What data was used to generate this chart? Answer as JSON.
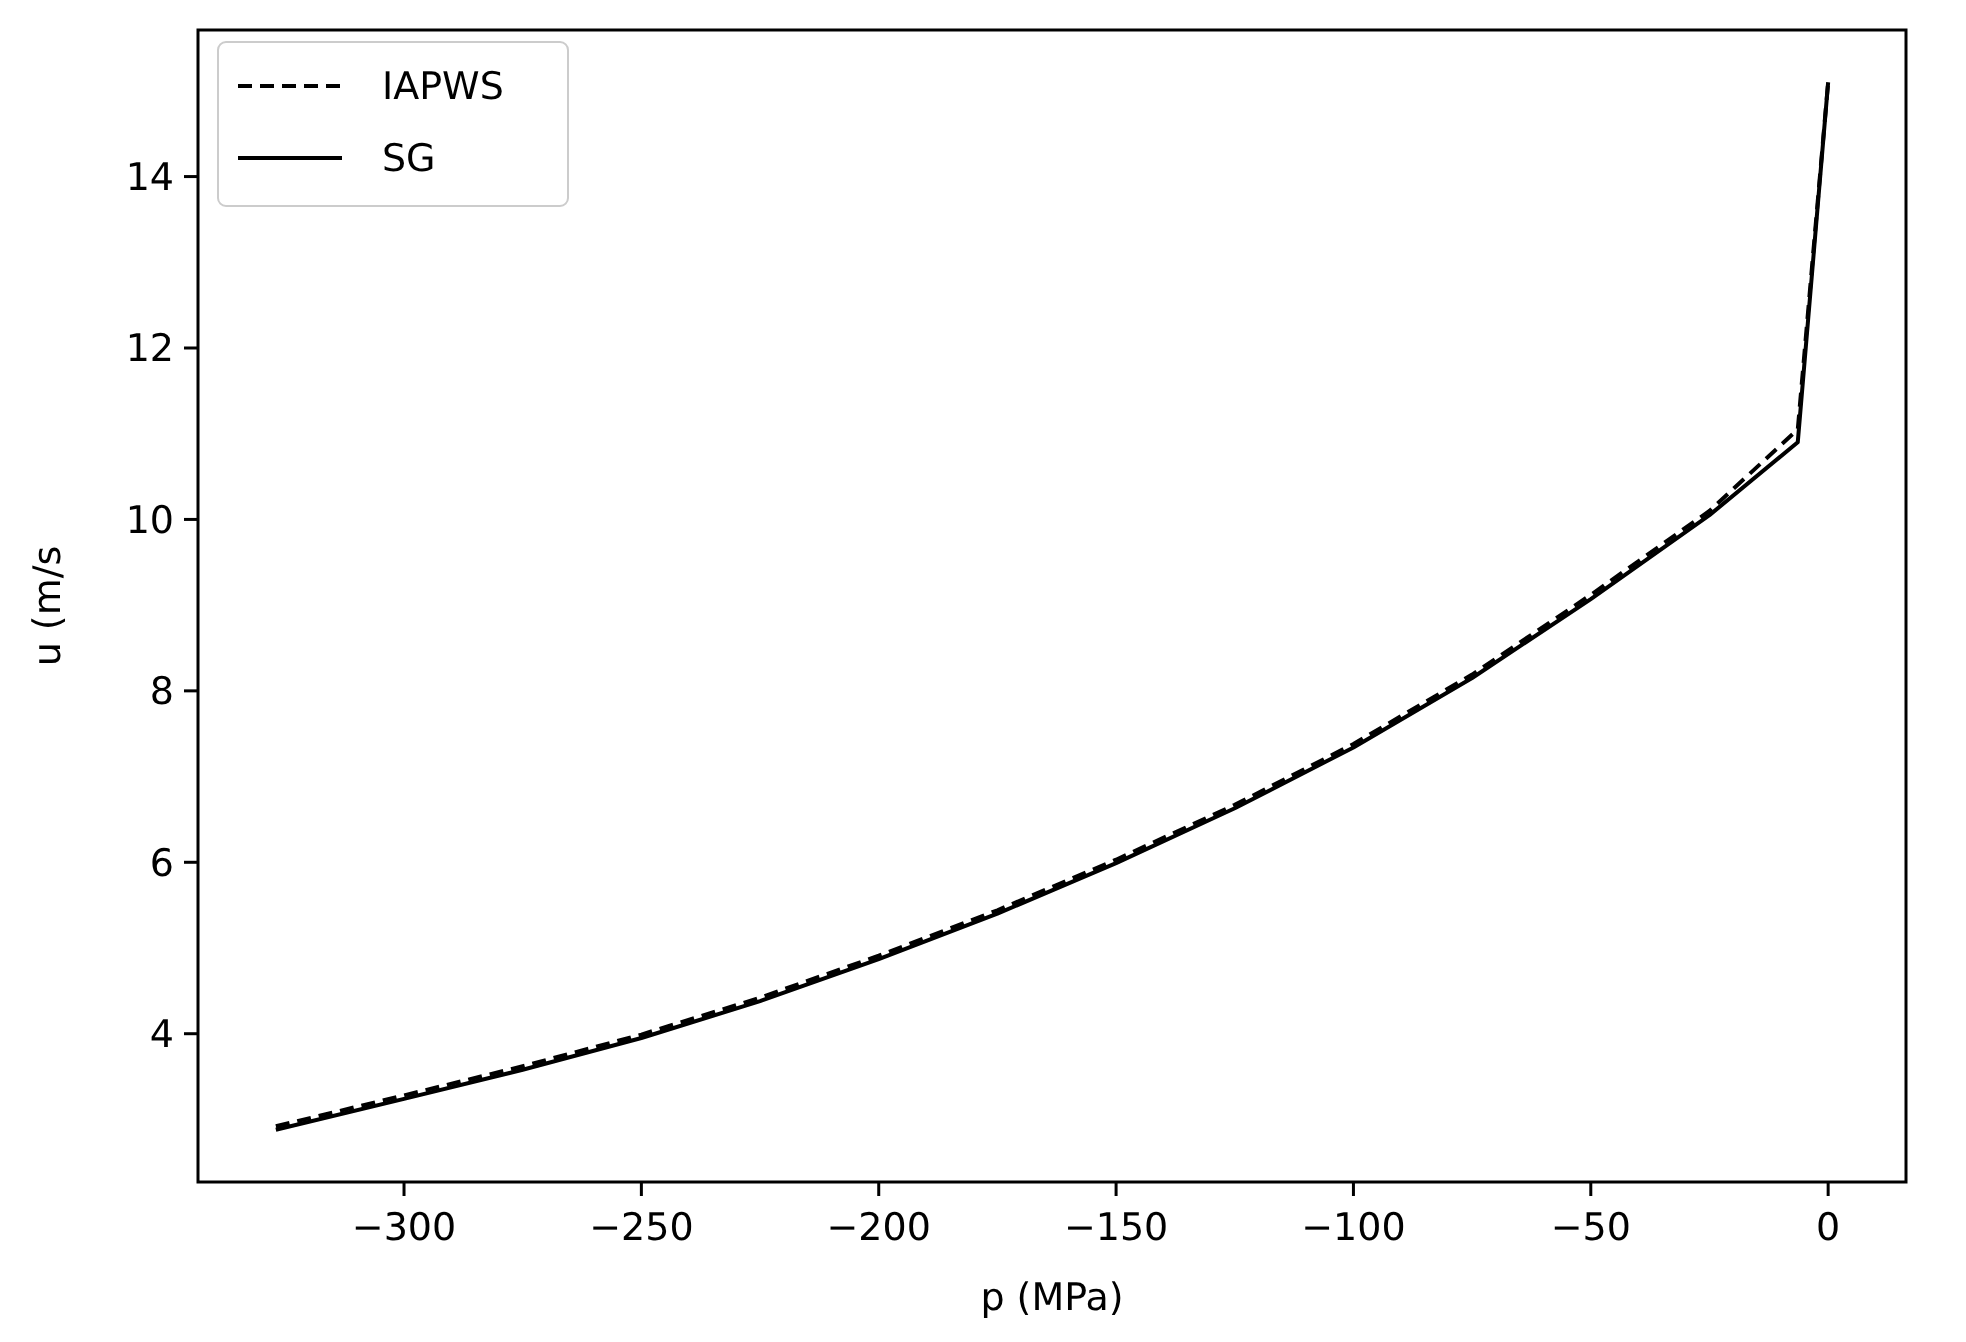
{
  "chart_data": {
    "type": "line",
    "xlabel": "p (MPa)",
    "ylabel": "u (m/s",
    "xlim": [
      -343.4,
      16.4
    ],
    "ylim": [
      2.27,
      15.71
    ],
    "xticks": [
      {
        "value": -300,
        "label": "−300"
      },
      {
        "value": -250,
        "label": "−250"
      },
      {
        "value": -200,
        "label": "−200"
      },
      {
        "value": -150,
        "label": "−150"
      },
      {
        "value": -100,
        "label": "−100"
      },
      {
        "value": -50,
        "label": "−50"
      },
      0
    ],
    "yticks": [
      4,
      6,
      8,
      10,
      12,
      14
    ],
    "grid": false,
    "legend": "top left",
    "marker": "none",
    "x": [
      -327,
      -300,
      -275,
      -250,
      -225,
      -200,
      -175,
      -150,
      -125,
      -100,
      -75,
      -50,
      -25,
      -6.4,
      0
    ],
    "series": [
      {
        "name": "IAPWS",
        "color": "#000000",
        "line_style": "dashed",
        "values": [
          2.92,
          3.28,
          3.62,
          3.99,
          4.42,
          4.91,
          5.44,
          6.03,
          6.67,
          7.38,
          8.19,
          9.12,
          10.1,
          11.05,
          15.1
        ]
      },
      {
        "name": "SG",
        "color": "#000000",
        "line_style": "solid",
        "values": [
          2.88,
          3.24,
          3.58,
          3.95,
          4.38,
          4.87,
          5.4,
          5.99,
          6.63,
          7.34,
          8.15,
          9.07,
          10.05,
          10.9,
          15.1
        ]
      }
    ]
  }
}
